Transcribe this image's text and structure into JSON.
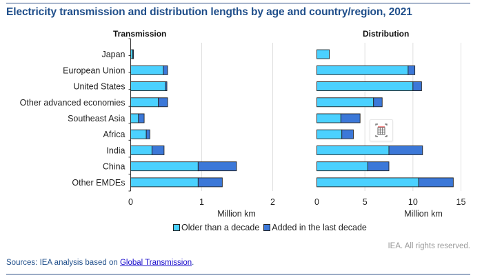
{
  "title": "Electricity transmission and distribution lengths by age and country/region, 2021",
  "credit": "IEA. All rights reserved.",
  "source": {
    "prefix": "Sources: IEA analysis based on ",
    "link": "Global Transmission",
    "suffix": "."
  },
  "icons": {
    "table_view": "table-view-icon"
  },
  "colors": {
    "older": "#4bd1ff",
    "added": "#3c78d8",
    "grid": "#e0e0e0",
    "title": "#1f4e8a"
  },
  "legend": [
    {
      "label": "Older than a decade",
      "color": "#4bd1ff"
    },
    {
      "label": "Added in the last decade",
      "color": "#3c78d8"
    }
  ],
  "chart_data": [
    {
      "type": "bar",
      "orientation": "horizontal",
      "stacked": true,
      "title": "Transmission",
      "xlabel": "Million km",
      "ylabel": "",
      "xlim": [
        0,
        2
      ],
      "xticks": [
        "0",
        "1",
        "2"
      ],
      "grid": true,
      "categories": [
        "Japan",
        "European Union",
        "United States",
        "Other advanced economies",
        "Southeast Asia",
        "Africa",
        "India",
        "China",
        "Other EMDEs"
      ],
      "series": [
        {
          "name": "Older than a decade",
          "values": [
            0.03,
            0.46,
            0.49,
            0.39,
            0.11,
            0.22,
            0.3,
            0.95,
            0.95
          ]
        },
        {
          "name": "Added in the last decade",
          "values": [
            0.01,
            0.06,
            0.02,
            0.13,
            0.08,
            0.05,
            0.17,
            0.54,
            0.34
          ]
        }
      ]
    },
    {
      "type": "bar",
      "orientation": "horizontal",
      "stacked": true,
      "title": "Distribution",
      "xlabel": "Million km",
      "ylabel": "",
      "xlim": [
        0,
        15
      ],
      "xticks": [
        "0",
        "5",
        "10",
        "15"
      ],
      "grid": true,
      "categories": [
        "Japan",
        "European Union",
        "United States",
        "Other advanced economies",
        "Southeast Asia",
        "Africa",
        "India",
        "China",
        "Other EMDEs"
      ],
      "series": [
        {
          "name": "Older than a decade",
          "values": [
            1.3,
            9.5,
            10.0,
            5.9,
            2.5,
            2.6,
            7.5,
            5.3,
            10.6
          ]
        },
        {
          "name": "Added in the last decade",
          "values": [
            0.0,
            0.7,
            0.9,
            0.9,
            2.0,
            1.2,
            3.5,
            2.2,
            3.6
          ]
        }
      ],
      "legend": "bottom"
    }
  ]
}
